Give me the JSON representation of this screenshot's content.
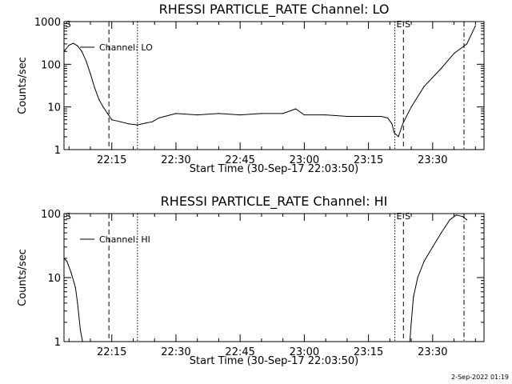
{
  "footer": {
    "timestamp": "2-Sep-2022 01:19"
  },
  "chart_data": [
    {
      "type": "line",
      "title": "RHESSI PARTICLE_RATE Channel: LO",
      "xlabel": "Start Time (30-Sep-17 22:03:50)",
      "ylabel": "Counts/sec",
      "y_scale": "log",
      "ylim": [
        1,
        1000
      ],
      "y_ticks": [
        1,
        10,
        100,
        1000
      ],
      "y_tick_labels": [
        "1",
        "10",
        "100",
        "1000"
      ],
      "xlim": [
        "22:03:50",
        "23:42:00"
      ],
      "x_ticks": [
        "22:15",
        "22:30",
        "22:45",
        "23:00",
        "23:15",
        "23:30"
      ],
      "series": [
        {
          "name": "Channel: LO",
          "color": "#000000",
          "x": [
            "22:03:50",
            "22:05:00",
            "22:06:00",
            "22:07:00",
            "22:08:00",
            "22:09:00",
            "22:10:00",
            "22:11:00",
            "22:12:00",
            "22:13:00",
            "22:14:00",
            "22:15:00",
            "22:17:00",
            "22:19:00",
            "22:21:00",
            "22:23:00",
            "22:24:30",
            "22:26:00",
            "22:30:00",
            "22:35:00",
            "22:40:00",
            "22:45:00",
            "22:50:00",
            "22:55:00",
            "22:58:00",
            "23:00:00",
            "23:05:00",
            "23:10:00",
            "23:15:00",
            "23:18:00",
            "23:19:30",
            "23:20:30",
            "23:21:00",
            "23:22:00",
            "23:23:00",
            "23:25:00",
            "23:28:00",
            "23:32:00",
            "23:35:00",
            "23:38:00",
            "23:40:00"
          ],
          "values": [
            200,
            280,
            310,
            270,
            200,
            120,
            60,
            28,
            15,
            10,
            7,
            5,
            4.5,
            4,
            3.8,
            4.2,
            4.5,
            5.5,
            7,
            6.5,
            7,
            6.5,
            7,
            7,
            9,
            6.5,
            6.5,
            6,
            6,
            6,
            5.5,
            4,
            2.5,
            2,
            4,
            10,
            30,
            80,
            180,
            300,
            800
          ]
        }
      ],
      "legend": {
        "label": "Channel: LO",
        "placement": "upper-left"
      },
      "vlines": [
        {
          "time": "22:14:20",
          "style": "dashed"
        },
        {
          "time": "22:21:00",
          "style": "dotted"
        },
        {
          "time": "23:21:10",
          "style": "dotted"
        },
        {
          "time": "23:23:10",
          "style": "dashed"
        },
        {
          "time": "23:37:20",
          "style": "dashdot"
        }
      ],
      "annotations": [
        {
          "text": "S",
          "time": "22:04:00"
        },
        {
          "text": "E",
          "time": "23:21:20"
        },
        {
          "text": "S",
          "time": "23:23:20"
        }
      ]
    },
    {
      "type": "line",
      "title": "RHESSI PARTICLE_RATE Channel: HI",
      "xlabel": "Start Time (30-Sep-17 22:03:50)",
      "ylabel": "Counts/sec",
      "y_scale": "log",
      "ylim": [
        1,
        100
      ],
      "y_ticks": [
        1,
        10,
        100
      ],
      "y_tick_labels": [
        "1",
        "10",
        "100"
      ],
      "xlim": [
        "22:03:50",
        "23:42:00"
      ],
      "x_ticks": [
        "22:15",
        "22:30",
        "22:45",
        "23:00",
        "23:15",
        "23:30"
      ],
      "series": [
        {
          "name": "Channel: HI",
          "color": "#000000",
          "x": [
            "22:03:50",
            "22:04:30",
            "22:05:30",
            "22:06:30",
            "22:07:00",
            "22:07:40",
            "22:08:10",
            "23:24:40",
            "23:25:00",
            "23:25:30",
            "23:26:30",
            "23:28:00",
            "23:30:00",
            "23:32:00",
            "23:34:00",
            "23:35:30",
            "23:37:00",
            "23:38:00"
          ],
          "values": [
            20,
            18,
            12,
            7,
            4,
            1.5,
            1,
            1,
            2,
            5,
            10,
            18,
            30,
            50,
            80,
            95,
            90,
            80
          ]
        }
      ],
      "legend": {
        "label": "Channel: HI",
        "placement": "upper-left"
      },
      "vlines": [
        {
          "time": "22:14:20",
          "style": "dashed"
        },
        {
          "time": "22:21:00",
          "style": "dotted"
        },
        {
          "time": "23:21:10",
          "style": "dotted"
        },
        {
          "time": "23:23:10",
          "style": "dashed"
        },
        {
          "time": "23:37:20",
          "style": "dashdot"
        }
      ],
      "annotations": [
        {
          "text": "S",
          "time": "22:04:00"
        },
        {
          "text": "E",
          "time": "23:21:20"
        },
        {
          "text": "S",
          "time": "23:23:20"
        }
      ]
    }
  ]
}
